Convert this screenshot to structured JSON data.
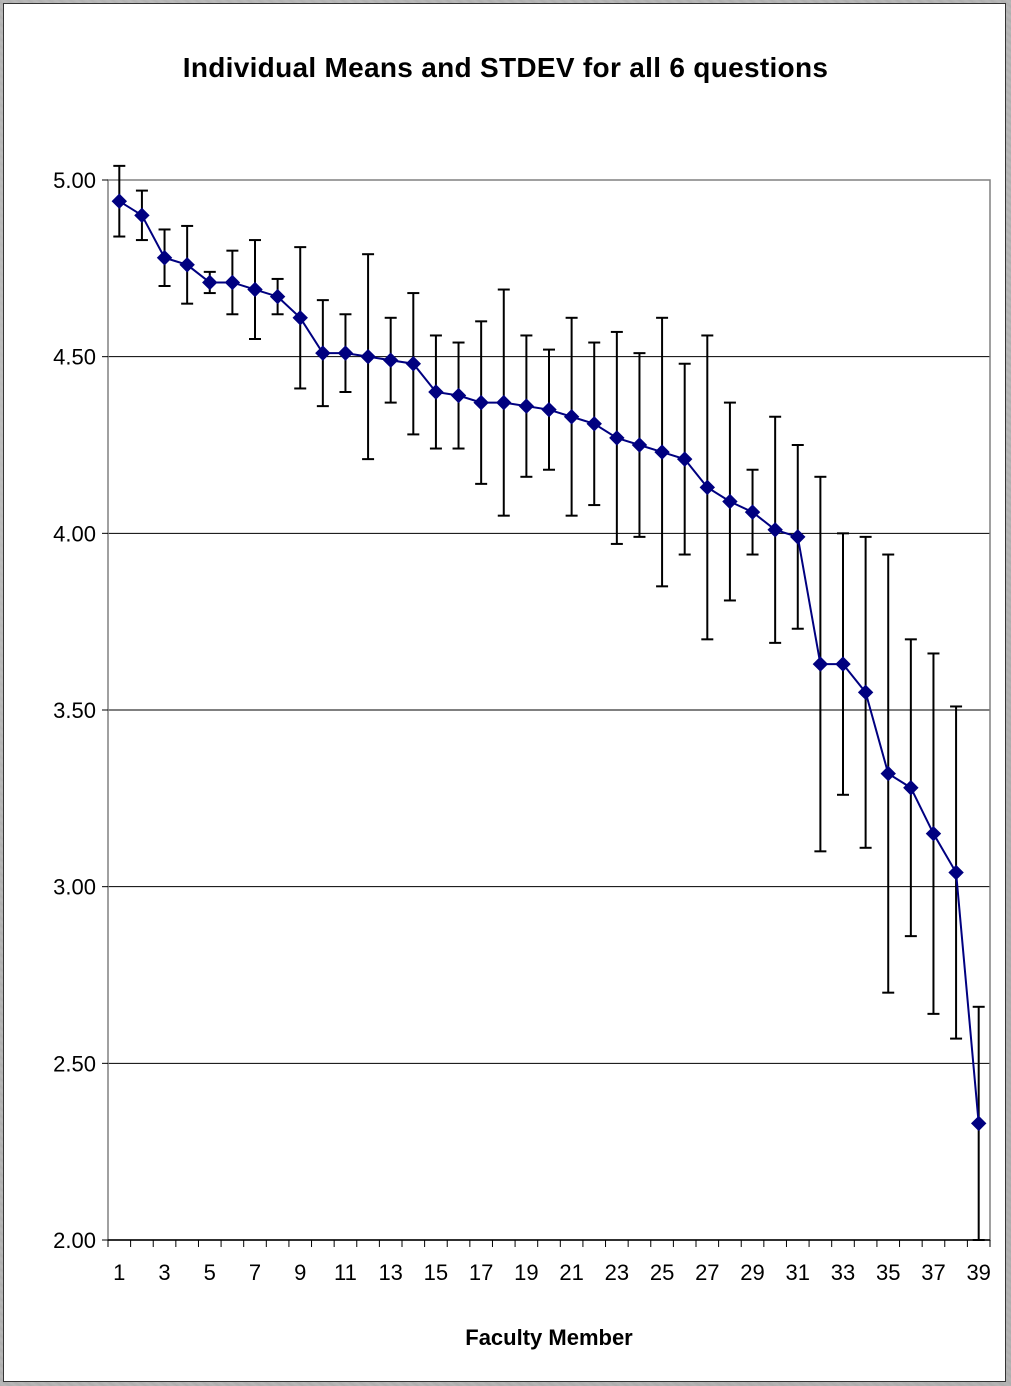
{
  "chart_data": {
    "type": "line",
    "title": "Individual Means and STDEV for all 6 questions",
    "xlabel": "Faculty Member",
    "ylabel": "",
    "ylim": [
      2.0,
      5.0
    ],
    "yticks": [
      "5.00",
      "4.50",
      "4.00",
      "3.50",
      "3.00",
      "2.50",
      "2.00"
    ],
    "xtick_labels": [
      "1",
      "3",
      "5",
      "7",
      "9",
      "11",
      "13",
      "15",
      "17",
      "19",
      "21",
      "23",
      "25",
      "27",
      "29",
      "31",
      "33",
      "35",
      "37",
      "39"
    ],
    "grid": "horizontal",
    "legend": "none",
    "x": [
      1,
      2,
      3,
      4,
      5,
      6,
      7,
      8,
      9,
      10,
      11,
      12,
      13,
      14,
      15,
      16,
      17,
      18,
      19,
      20,
      21,
      22,
      23,
      24,
      25,
      26,
      27,
      28,
      29,
      30,
      31,
      32,
      33,
      34,
      35,
      36,
      37,
      38,
      39
    ],
    "series": [
      {
        "values": [
          4.94,
          4.9,
          4.78,
          4.76,
          4.71,
          4.71,
          4.69,
          4.67,
          4.61,
          4.51,
          4.51,
          4.5,
          4.49,
          4.48,
          4.4,
          4.39,
          4.37,
          4.37,
          4.36,
          4.35,
          4.33,
          4.31,
          4.27,
          4.25,
          4.23,
          4.21,
          4.13,
          4.09,
          4.06,
          4.01,
          3.99,
          3.63,
          3.63,
          3.55,
          3.32,
          3.28,
          3.15,
          3.04,
          2.33
        ],
        "stdev": [
          0.1,
          0.07,
          0.08,
          0.11,
          0.03,
          0.09,
          0.14,
          0.05,
          0.2,
          0.15,
          0.11,
          0.29,
          0.12,
          0.2,
          0.16,
          0.15,
          0.23,
          0.32,
          0.2,
          0.17,
          0.28,
          0.23,
          0.3,
          0.26,
          0.38,
          0.27,
          0.43,
          0.28,
          0.12,
          0.32,
          0.26,
          0.53,
          0.37,
          0.44,
          0.62,
          0.42,
          0.51,
          0.47,
          0.33
        ]
      }
    ],
    "colors": {
      "line": "#000080",
      "marker": "#000080",
      "error_bar": "#000000",
      "grid": "#000000",
      "plot_border": "#808080"
    }
  }
}
